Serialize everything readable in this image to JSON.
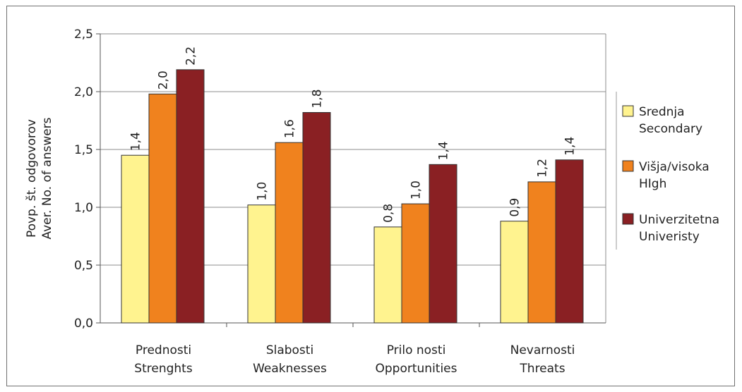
{
  "chart_data": {
    "type": "bar",
    "title": "",
    "ylabel": [
      "Povp. št. odgovorov",
      "Aver. No. of answers"
    ],
    "xlabel": "",
    "ylim": [
      0,
      2.5
    ],
    "yticks": [
      "0,0",
      "0,5",
      "1,0",
      "1,5",
      "2,0",
      "2,5"
    ],
    "categories": [
      [
        "Prednosti",
        "Strenghts"
      ],
      [
        "Slabosti",
        "Weaknesses"
      ],
      [
        "Prilo nosti",
        "Opportunities"
      ],
      [
        "Nevarnosti",
        "Threats"
      ]
    ],
    "series": [
      {
        "name": [
          "Srednja",
          "Secondary"
        ],
        "color": "#fff38f",
        "values": [
          1.45,
          1.02,
          0.83,
          0.88
        ],
        "labels": [
          "1,4",
          "1,0",
          "0,8",
          "0,9"
        ]
      },
      {
        "name": [
          "Višja/visoka",
          "HIgh"
        ],
        "color": "#f0821e",
        "values": [
          1.98,
          1.56,
          1.03,
          1.22
        ],
        "labels": [
          "2,0",
          "1,6",
          "1,0",
          "1,2"
        ]
      },
      {
        "name": [
          "Univerzitetna",
          "Univeristy"
        ],
        "color": "#8a2023",
        "values": [
          2.19,
          1.82,
          1.37,
          1.41
        ],
        "labels": [
          "2,2",
          "1,8",
          "1,4",
          "1,4"
        ]
      }
    ],
    "grid": true,
    "legend": "right"
  }
}
